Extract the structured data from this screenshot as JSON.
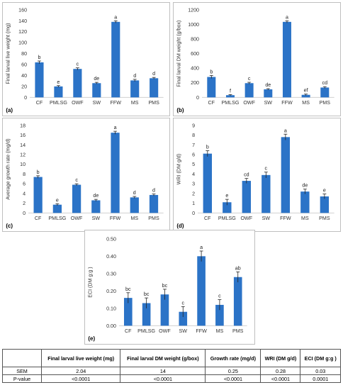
{
  "colors": {
    "bar": "#2b73c7",
    "axis": "#d0d0d0",
    "grid": "#e6e6e6"
  },
  "chart_data": [
    {
      "id": "a",
      "type": "bar",
      "panel_label": "(a)",
      "categories": [
        "CF",
        "PMLSG",
        "OWF",
        "SW",
        "FFW",
        "MS",
        "PMS"
      ],
      "values": [
        64,
        20,
        52,
        26,
        138,
        31,
        35
      ],
      "errors": [
        2.5,
        1.5,
        2,
        1.5,
        2,
        2,
        1.5
      ],
      "letters": [
        "b",
        "e",
        "c",
        "de",
        "a",
        "d",
        "d"
      ],
      "ylabel": "Final larval live weight (mg)",
      "ylim": [
        0,
        160
      ],
      "yticks": [
        0,
        20,
        40,
        60,
        80,
        100,
        120,
        140,
        160
      ],
      "tick_labels": [
        "0",
        "20",
        "40",
        "60",
        "80",
        "100",
        "120",
        "140",
        "160"
      ],
      "grid": false
    },
    {
      "id": "b",
      "type": "bar",
      "panel_label": "(b)",
      "categories": [
        "CF",
        "PMLSG",
        "OWF",
        "SW",
        "FFW",
        "MS",
        "PMS"
      ],
      "values": [
        280,
        30,
        195,
        110,
        1035,
        35,
        135
      ],
      "errors": [
        20,
        8,
        12,
        10,
        15,
        10,
        12
      ],
      "letters": [
        "b",
        "f",
        "c",
        "de",
        "a",
        "ef",
        "cd"
      ],
      "ylabel": "Final larval DM weight (g/box)",
      "ylim": [
        0,
        1200
      ],
      "yticks": [
        0,
        200,
        400,
        600,
        800,
        1000,
        1200
      ],
      "tick_labels": [
        "0",
        "200",
        "400",
        "600",
        "800",
        "1000",
        "1200"
      ],
      "grid": false
    },
    {
      "id": "c",
      "type": "bar",
      "panel_label": "(c)",
      "categories": [
        "CF",
        "PMLSG",
        "OWF",
        "SW",
        "FFW",
        "MS",
        "PMS"
      ],
      "values": [
        7.4,
        1.7,
        5.8,
        2.6,
        16.5,
        3.2,
        3.7
      ],
      "errors": [
        0.25,
        0.2,
        0.2,
        0.2,
        0.3,
        0.2,
        0.2
      ],
      "letters": [
        "b",
        "e",
        "c",
        "de",
        "a",
        "d",
        "d"
      ],
      "ylabel": "Average growth rate (mg/d)",
      "ylim": [
        0,
        18
      ],
      "yticks": [
        0,
        2,
        4,
        6,
        8,
        10,
        12,
        14,
        16,
        18
      ],
      "tick_labels": [
        "0",
        "2",
        "4",
        "6",
        "8",
        "10",
        "12",
        "14",
        "16",
        "18"
      ],
      "grid": false
    },
    {
      "id": "d",
      "type": "bar",
      "panel_label": "(d)",
      "categories": [
        "CF",
        "PMLSG",
        "OWF",
        "SW",
        "FFW",
        "MS",
        "PMS"
      ],
      "values": [
        6.1,
        1.1,
        3.3,
        3.9,
        7.8,
        2.2,
        1.7
      ],
      "errors": [
        0.3,
        0.3,
        0.25,
        0.3,
        0.3,
        0.25,
        0.25
      ],
      "letters": [
        "b",
        "e",
        "cd",
        "c",
        "a",
        "de",
        "e"
      ],
      "ylabel": "WRI (DM g/d)",
      "ylim": [
        0,
        9
      ],
      "yticks": [
        0,
        1,
        2,
        3,
        4,
        5,
        6,
        7,
        8,
        9
      ],
      "tick_labels": [
        "0",
        "1",
        "2",
        "3",
        "4",
        "5",
        "6",
        "7",
        "8",
        "9"
      ],
      "grid": false
    },
    {
      "id": "e",
      "type": "bar",
      "panel_label": "(e)",
      "categories": [
        "CF",
        "PMLSG",
        "OWF",
        "SW",
        "FFW",
        "MS",
        "PMS"
      ],
      "values": [
        0.16,
        0.13,
        0.18,
        0.08,
        0.4,
        0.12,
        0.28
      ],
      "errors": [
        0.03,
        0.03,
        0.03,
        0.03,
        0.03,
        0.03,
        0.03
      ],
      "letters": [
        "bc",
        "bc",
        "bc",
        "c",
        "a",
        "c",
        "ab"
      ],
      "ylabel": "ECI (DM g:g )",
      "ylim": [
        0,
        0.5
      ],
      "yticks": [
        0,
        0.1,
        0.2,
        0.3,
        0.4,
        0.5
      ],
      "tick_labels": [
        "0.00",
        "0.10",
        "0.20",
        "0.30",
        "0.40",
        "0.50"
      ],
      "grid": false
    }
  ],
  "table": {
    "headers": [
      "",
      "Final larval live weight (mg)",
      "Final larval DM weight (g/box)",
      "Growth rate (mg/d)",
      "WRI (DM g/d)",
      "ECI (DM g:g )"
    ],
    "rows": [
      [
        "SEM",
        "2.04",
        "14",
        "0.25",
        "0.28",
        "0.03"
      ],
      [
        "P-value",
        "<0.0001",
        "<0.0001",
        "<0.0001",
        "<0.0001",
        "0.0001"
      ]
    ]
  }
}
